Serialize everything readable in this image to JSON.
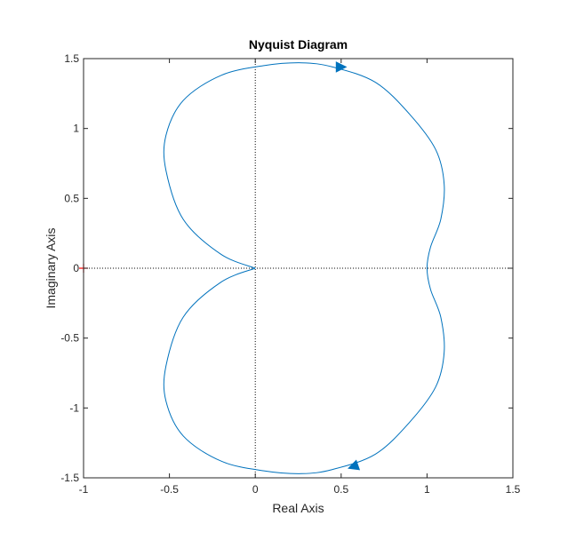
{
  "chart_data": {
    "type": "line",
    "title": "Nyquist Diagram",
    "xlabel": "Real Axis",
    "ylabel": "Imaginary Axis",
    "xlim": [
      -1,
      1.5
    ],
    "ylim": [
      -1.5,
      1.5
    ],
    "xticks": [
      -1,
      -0.5,
      0,
      0.5,
      1,
      1.5
    ],
    "xtick_labels": [
      "-1",
      "-0.5",
      "0",
      "0.5",
      "1",
      "1.5"
    ],
    "yticks": [
      -1.5,
      -1,
      -0.5,
      0,
      0.5,
      1,
      1.5
    ],
    "ytick_labels": [
      "-1.5",
      "-1",
      "-0.5",
      "0",
      "0.5",
      "1",
      "1.5"
    ],
    "grid": false,
    "series": [
      {
        "color": "#0072BD",
        "x": [
          0,
          -0.2,
          -0.42,
          -0.52,
          -0.52,
          -0.42,
          -0.2,
          0.05,
          0.27,
          0.45,
          0.7,
          0.9,
          1.05,
          1.1,
          1.08,
          1.02,
          1.0,
          1.02,
          1.08,
          1.1,
          1.05,
          0.9,
          0.7,
          0.45,
          0.27,
          0.05,
          -0.2,
          -0.42,
          -0.52,
          -0.52,
          -0.42,
          -0.2,
          0
        ],
        "y": [
          0,
          0.1,
          0.35,
          0.7,
          0.95,
          1.2,
          1.38,
          1.45,
          1.47,
          1.44,
          1.33,
          1.1,
          0.85,
          0.6,
          0.35,
          0.15,
          0,
          -0.15,
          -0.35,
          -0.6,
          -0.85,
          -1.1,
          -1.33,
          -1.44,
          -1.47,
          -1.45,
          -1.38,
          -1.2,
          -0.95,
          -0.7,
          -0.35,
          -0.1,
          0
        ]
      }
    ],
    "direction_arrows": [
      {
        "x": 0.5,
        "y": 1.44,
        "dx": 1,
        "dy": 0
      },
      {
        "x": 0.57,
        "y": -1.42,
        "dx": -1,
        "dy": -0.35
      }
    ],
    "reference_lines": {
      "x": 0,
      "y": 0,
      "style": "dotted",
      "color": "#000000"
    },
    "critical_point": {
      "x": -1,
      "y": 0,
      "marker": "+",
      "color": "#FF0000"
    }
  }
}
